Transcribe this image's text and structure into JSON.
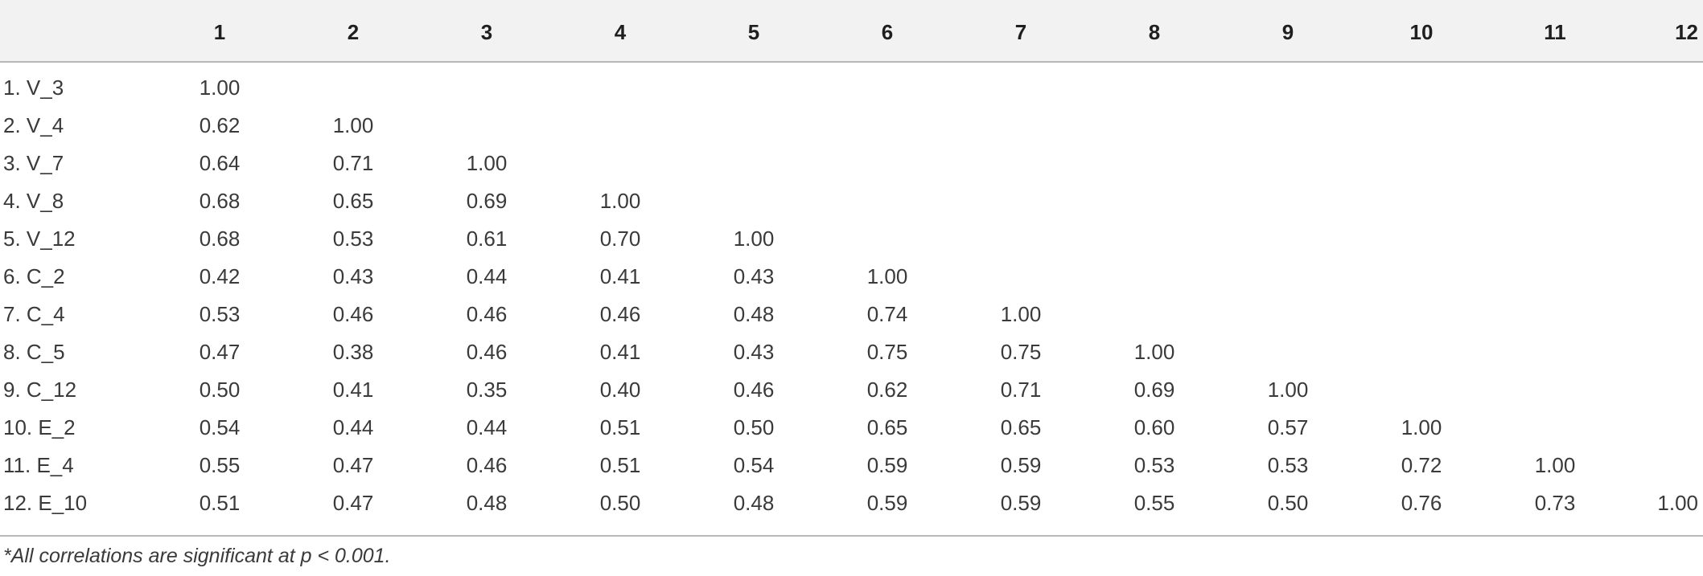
{
  "table": {
    "columns": [
      "",
      "1",
      "2",
      "3",
      "4",
      "5",
      "6",
      "7",
      "8",
      "9",
      "10",
      "11",
      "12"
    ],
    "rows": [
      {
        "label": "1. V_3",
        "values": [
          "1.00",
          "",
          "",
          "",
          "",
          "",
          "",
          "",
          "",
          "",
          "",
          ""
        ]
      },
      {
        "label": "2. V_4",
        "values": [
          "0.62",
          "1.00",
          "",
          "",
          "",
          "",
          "",
          "",
          "",
          "",
          "",
          ""
        ]
      },
      {
        "label": "3. V_7",
        "values": [
          "0.64",
          "0.71",
          "1.00",
          "",
          "",
          "",
          "",
          "",
          "",
          "",
          "",
          ""
        ]
      },
      {
        "label": "4. V_8",
        "values": [
          "0.68",
          "0.65",
          "0.69",
          "1.00",
          "",
          "",
          "",
          "",
          "",
          "",
          "",
          ""
        ]
      },
      {
        "label": "5. V_12",
        "values": [
          "0.68",
          "0.53",
          "0.61",
          "0.70",
          "1.00",
          "",
          "",
          "",
          "",
          "",
          "",
          ""
        ]
      },
      {
        "label": "6. C_2",
        "values": [
          "0.42",
          "0.43",
          "0.44",
          "0.41",
          "0.43",
          "1.00",
          "",
          "",
          "",
          "",
          "",
          ""
        ]
      },
      {
        "label": "7. C_4",
        "values": [
          "0.53",
          "0.46",
          "0.46",
          "0.46",
          "0.48",
          "0.74",
          "1.00",
          "",
          "",
          "",
          "",
          ""
        ]
      },
      {
        "label": "8. C_5",
        "values": [
          "0.47",
          "0.38",
          "0.46",
          "0.41",
          "0.43",
          "0.75",
          "0.75",
          "1.00",
          "",
          "",
          "",
          ""
        ]
      },
      {
        "label": "9. C_12",
        "values": [
          "0.50",
          "0.41",
          "0.35",
          "0.40",
          "0.46",
          "0.62",
          "0.71",
          "0.69",
          "1.00",
          "",
          "",
          ""
        ]
      },
      {
        "label": "10. E_2",
        "values": [
          "0.54",
          "0.44",
          "0.44",
          "0.51",
          "0.50",
          "0.65",
          "0.65",
          "0.60",
          "0.57",
          "1.00",
          "",
          ""
        ]
      },
      {
        "label": "11. E_4",
        "values": [
          "0.55",
          "0.47",
          "0.46",
          "0.51",
          "0.54",
          "0.59",
          "0.59",
          "0.53",
          "0.53",
          "0.72",
          "1.00",
          ""
        ]
      },
      {
        "label": "12. E_10",
        "values": [
          "0.51",
          "0.47",
          "0.48",
          "0.50",
          "0.48",
          "0.59",
          "0.59",
          "0.55",
          "0.50",
          "0.76",
          "0.73",
          "1.00"
        ]
      }
    ]
  },
  "footnote": "*All correlations are significant at p < 0.001."
}
